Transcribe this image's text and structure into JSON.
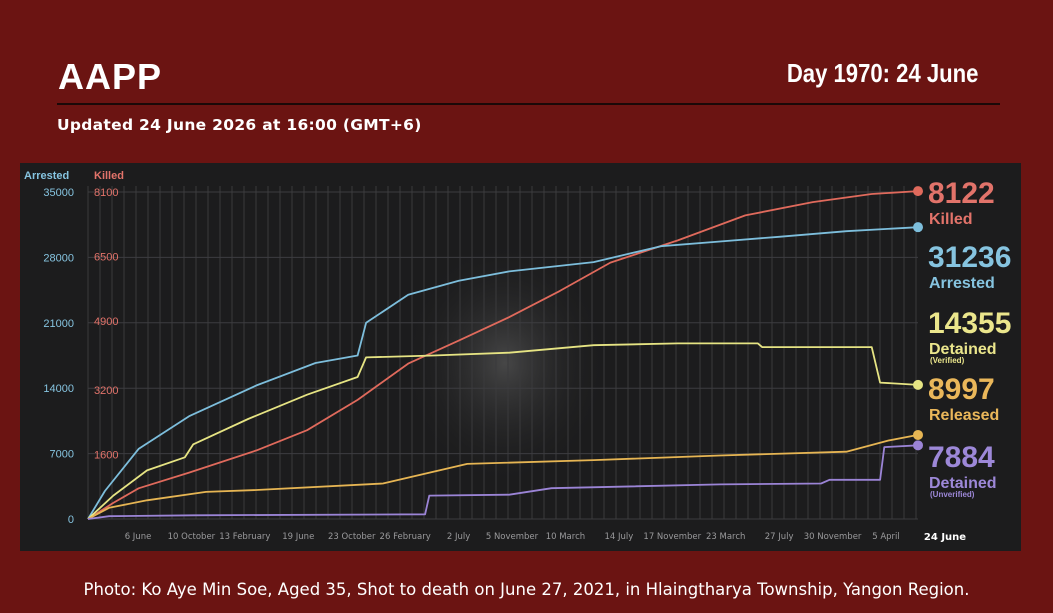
{
  "header": {
    "org": "AAPP",
    "day": "Day 1970: 24 June",
    "updated": "Updated 24 June 2026 at 16:00 (GMT+6)"
  },
  "caption": "Photo: Ko Aye Min Soe, Aged 35, Shot to death on June 27, 2021, in Hlaingtharya Township, Yangon Region.",
  "chart_data": {
    "type": "line",
    "left_axis_label": "Arrested",
    "right_axis_label": "Killed",
    "left_ticks": [
      0,
      7000,
      14000,
      21000,
      28000,
      35000
    ],
    "right_ticks": [
      "1600",
      "3200",
      "4900",
      "6500",
      "8100"
    ],
    "ylim_arrested": [
      0,
      35000
    ],
    "ylim_killed": [
      0,
      8100
    ],
    "x_ticks": [
      "6 June",
      "10 October",
      "13 February",
      "19 June",
      "23 October",
      "26 February",
      "2 July",
      "5 November",
      "10 March",
      "14 July",
      "17 November",
      "23 March",
      "27 July",
      "30 November",
      "5 April"
    ],
    "x_end_label": "24 June",
    "x_range_days": [
      0,
      1970
    ],
    "grid": true,
    "series": [
      {
        "name": "Killed",
        "color": "#e06a5c",
        "label_color": "#e2736a",
        "final": "8122",
        "axis": "killed",
        "points": [
          [
            0,
            0
          ],
          [
            60,
            400
          ],
          [
            120,
            760
          ],
          [
            240,
            1150
          ],
          [
            400,
            1700
          ],
          [
            520,
            2200
          ],
          [
            640,
            2950
          ],
          [
            760,
            3850
          ],
          [
            880,
            4420
          ],
          [
            1000,
            5000
          ],
          [
            1120,
            5650
          ],
          [
            1240,
            6350
          ],
          [
            1400,
            6900
          ],
          [
            1560,
            7520
          ],
          [
            1720,
            7850
          ],
          [
            1860,
            8050
          ],
          [
            1970,
            8122
          ]
        ]
      },
      {
        "name": "Arrested",
        "color": "#7dbedc",
        "label_color": "#86c4e0",
        "final": "31236",
        "axis": "arrested",
        "points": [
          [
            0,
            0
          ],
          [
            40,
            3000
          ],
          [
            120,
            7500
          ],
          [
            240,
            11000
          ],
          [
            400,
            14300
          ],
          [
            540,
            16700
          ],
          [
            640,
            17500
          ],
          [
            660,
            21000
          ],
          [
            760,
            24000
          ],
          [
            880,
            25500
          ],
          [
            1000,
            26500
          ],
          [
            1200,
            27500
          ],
          [
            1360,
            29200
          ],
          [
            1500,
            29700
          ],
          [
            1640,
            30200
          ],
          [
            1800,
            30800
          ],
          [
            1970,
            31236
          ]
        ]
      },
      {
        "name": "Detained",
        "sub": "(Verified)",
        "color": "#e6e483",
        "label_color": "#ebe68c",
        "final": "14355",
        "axis": "arrested",
        "points": [
          [
            0,
            0
          ],
          [
            60,
            2500
          ],
          [
            140,
            5200
          ],
          [
            230,
            6600
          ],
          [
            250,
            8000
          ],
          [
            380,
            10700
          ],
          [
            520,
            13300
          ],
          [
            640,
            15200
          ],
          [
            660,
            17300
          ],
          [
            820,
            17500
          ],
          [
            1000,
            17800
          ],
          [
            1200,
            18600
          ],
          [
            1400,
            18800
          ],
          [
            1590,
            18800
          ],
          [
            1600,
            18400
          ],
          [
            1860,
            18400
          ],
          [
            1880,
            14600
          ],
          [
            1970,
            14355
          ]
        ]
      },
      {
        "name": "Released",
        "color": "#e6b553",
        "label_color": "#eab75a",
        "final": "8997",
        "axis": "arrested",
        "points": [
          [
            0,
            0
          ],
          [
            50,
            1200
          ],
          [
            140,
            2000
          ],
          [
            280,
            2900
          ],
          [
            400,
            3100
          ],
          [
            700,
            3800
          ],
          [
            900,
            5900
          ],
          [
            1200,
            6300
          ],
          [
            1500,
            6800
          ],
          [
            1800,
            7200
          ],
          [
            1900,
            8400
          ],
          [
            1970,
            8997
          ]
        ]
      },
      {
        "name": "Detained",
        "sub": "(Unverified)",
        "color": "#9b84d6",
        "label_color": "#9d88d8",
        "final": "7884",
        "axis": "arrested",
        "points": [
          [
            0,
            0
          ],
          [
            50,
            300
          ],
          [
            250,
            400
          ],
          [
            800,
            500
          ],
          [
            810,
            2500
          ],
          [
            1000,
            2600
          ],
          [
            1100,
            3300
          ],
          [
            1500,
            3700
          ],
          [
            1740,
            3800
          ],
          [
            1760,
            4200
          ],
          [
            1880,
            4200
          ],
          [
            1890,
            7700
          ],
          [
            1970,
            7884
          ]
        ]
      }
    ]
  }
}
